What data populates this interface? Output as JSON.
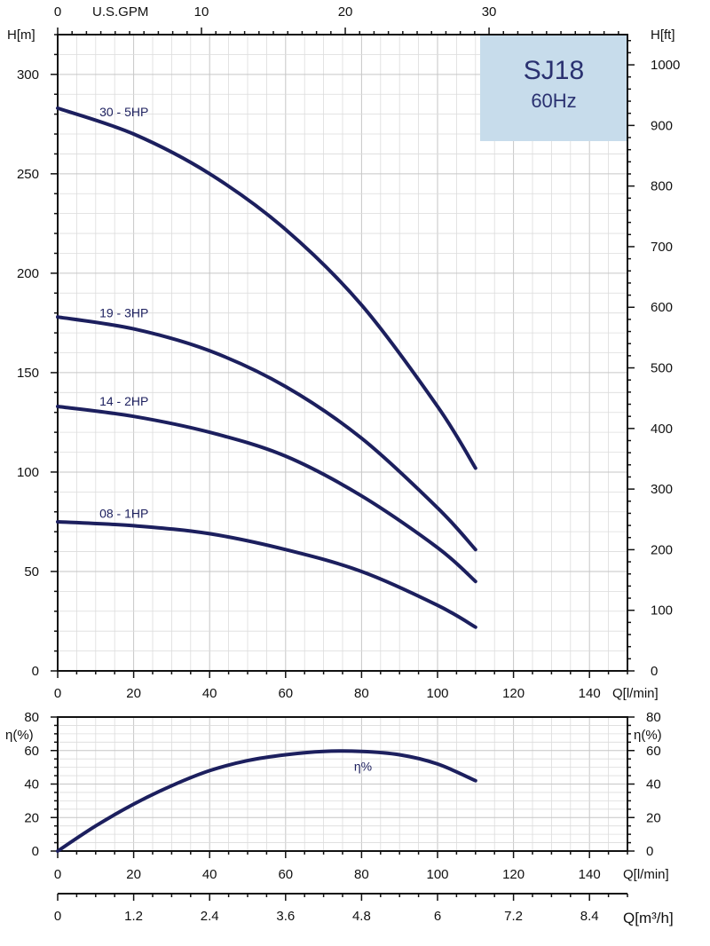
{
  "chart_data": [
    {
      "type": "line",
      "panel": "head",
      "title": "SJ18",
      "subtitle": "60Hz",
      "xlabel": "Q[l/min]",
      "ylabel": "H[m]",
      "ylabel_right": "H[ft]",
      "xlabel_top": "U.S.GPM",
      "xlim": [
        0,
        150
      ],
      "ylim": [
        0,
        320
      ],
      "xticks": [
        "0",
        "20",
        "40",
        "60",
        "80",
        "100",
        "120",
        "140"
      ],
      "yticks": [
        "0",
        "50",
        "100",
        "150",
        "200",
        "250",
        "300"
      ],
      "yticks_right": [
        "0",
        "100",
        "200",
        "300",
        "400",
        "500",
        "600",
        "700",
        "800",
        "900",
        "1000"
      ],
      "xticks_top": [
        "0",
        "10",
        "20",
        "30"
      ],
      "grid": true,
      "series": [
        {
          "name": "30 - 5HP",
          "x": [
            0,
            20,
            40,
            60,
            80,
            100,
            110
          ],
          "y": [
            283,
            270,
            250,
            222,
            184,
            133,
            102
          ]
        },
        {
          "name": "19 - 3HP",
          "x": [
            0,
            20,
            40,
            60,
            80,
            100,
            110
          ],
          "y": [
            178,
            172,
            161,
            143,
            117,
            82,
            61
          ]
        },
        {
          "name": "14 - 2HP",
          "x": [
            0,
            20,
            40,
            60,
            80,
            100,
            110
          ],
          "y": [
            133,
            128,
            120,
            108,
            88,
            62,
            45
          ]
        },
        {
          "name": "08 - 1HP",
          "x": [
            0,
            20,
            40,
            60,
            80,
            100,
            110
          ],
          "y": [
            75,
            73,
            69,
            61,
            50,
            33,
            22
          ]
        }
      ]
    },
    {
      "type": "line",
      "panel": "efficiency",
      "xlabel": "Q[l/min]",
      "ylabel": "η(%)",
      "ylabel_right": "η(%)",
      "xlim": [
        0,
        150
      ],
      "ylim": [
        0,
        80
      ],
      "xticks": [
        "0",
        "20",
        "40",
        "60",
        "80",
        "100",
        "120",
        "140"
      ],
      "yticks": [
        "0",
        "20",
        "40",
        "60",
        "80"
      ],
      "grid": true,
      "series": [
        {
          "name": "η%",
          "x": [
            0,
            10,
            20,
            30,
            40,
            50,
            60,
            70,
            80,
            90,
            100,
            110
          ],
          "y": [
            0,
            15,
            28,
            39,
            48,
            54,
            57.5,
            59.5,
            59.5,
            57.5,
            52,
            42
          ]
        }
      ]
    },
    {
      "type": "axis",
      "panel": "flow-m3h",
      "xlabel": "Q[m³/h]",
      "xticks": [
        "0",
        "1.2",
        "2.4",
        "3.6",
        "4.8",
        "6",
        "7.2",
        "8.4"
      ]
    }
  ],
  "colors": {
    "curve": "#1c1f5e",
    "title_box": "#c7dceb",
    "title_text": "#2a3170"
  }
}
